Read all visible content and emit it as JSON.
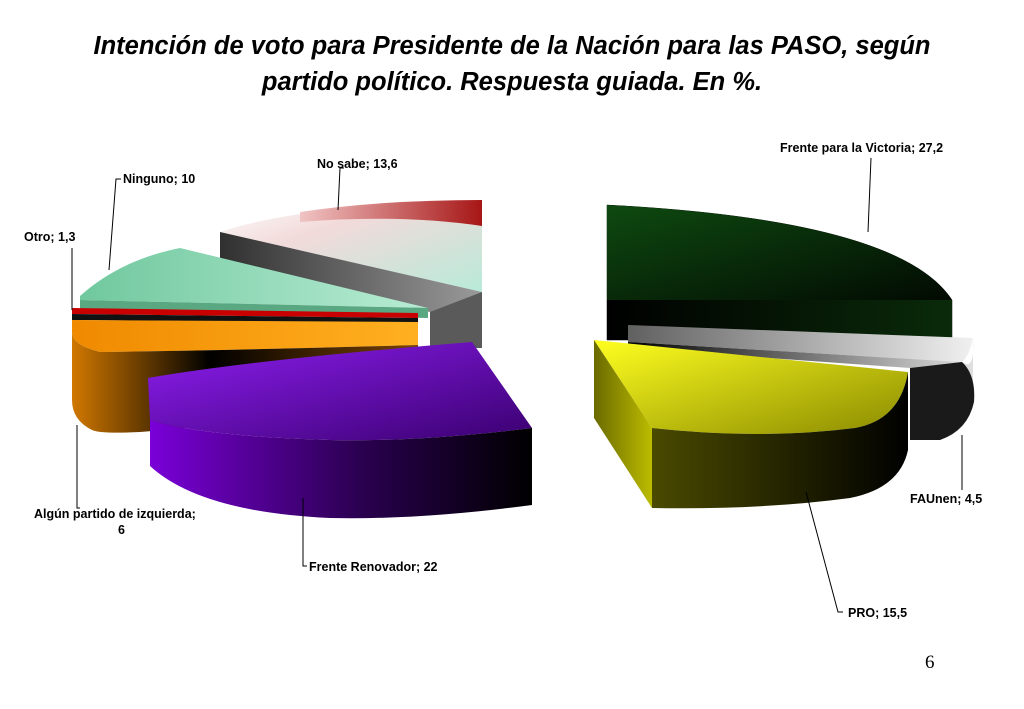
{
  "slide": {
    "title_line1": "Intención de voto para Presidente de la Nación para las PASO, según",
    "title_line2": "partido político. Respuesta guiada. En %.",
    "page_number": "6"
  },
  "chart_data": {
    "type": "pie",
    "unit": "%",
    "slices": [
      {
        "label": "Frente para la Victoria; 27,2",
        "category": "Frente para la Victoria",
        "value": 27.2,
        "color": "#0a3a0a"
      },
      {
        "label": "FAUnen; 4,5",
        "category": "FAUnen",
        "value": 4.5,
        "color": "#b4b4b4"
      },
      {
        "label": "PRO; 15,5",
        "category": "PRO",
        "value": 15.5,
        "color": "#e8e800"
      },
      {
        "label": "Frente Renovador; 22",
        "category": "Frente Renovador",
        "value": 22,
        "color": "#8000e0"
      },
      {
        "label": "Algún partido de izquierda;",
        "label2": "6",
        "category": "Algún partido de izquierda",
        "value": 6,
        "color": "#f39400"
      },
      {
        "label": "Otro; 1,3",
        "category": "Otro",
        "value": 1.3,
        "color": "#d40000"
      },
      {
        "label": "Ninguno; 10",
        "category": "Ninguno",
        "value": 10,
        "color": "#7fcfa6"
      },
      {
        "label": "No sabe; 13,6",
        "category": "No sabe",
        "value": 13.6,
        "color": "#b02020"
      }
    ]
  }
}
